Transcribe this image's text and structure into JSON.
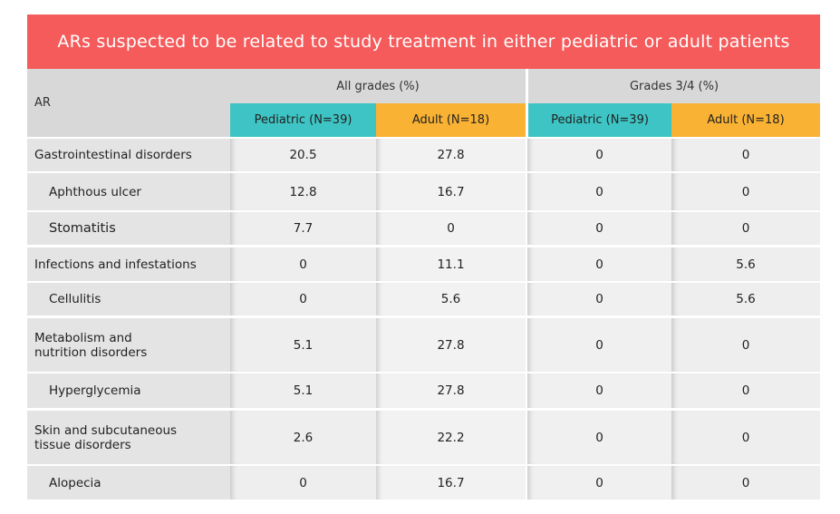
{
  "title": "ARs suspected to be related to study treatment in either pediatric or adult patients",
  "header": {
    "ar_label": "AR",
    "group_all": "All grades (%)",
    "group_34": "Grades 3/4 (%)",
    "pediatric": "Pediatric (N=39)",
    "adult": "Adult (N=18)"
  },
  "colors": {
    "title_bg": "#f55b5b",
    "pediatric": "#3ec4c4",
    "adult": "#f9b233",
    "header_gray": "#d8d8d8"
  },
  "rows": [
    {
      "label": "Gastrointestinal disorders",
      "all_ped": "20.5",
      "all_adult": "27.8",
      "g34_ped": "0",
      "g34_adult": "0"
    },
    {
      "label": "Aphthous ulcer",
      "all_ped": "12.8",
      "all_adult": "16.7",
      "g34_ped": "0",
      "g34_adult": "0"
    },
    {
      "label": "Stomatitis",
      "all_ped": "7.7",
      "all_adult": "0",
      "g34_ped": "0",
      "g34_adult": "0"
    },
    {
      "label": "Infections and infestations",
      "all_ped": "0",
      "all_adult": "11.1",
      "g34_ped": "0",
      "g34_adult": "5.6"
    },
    {
      "label": "Cellulitis",
      "all_ped": "0",
      "all_adult": "5.6",
      "g34_ped": "0",
      "g34_adult": "5.6"
    },
    {
      "label_line1": "Metabolism and",
      "label_line2": "nutrition disorders",
      "all_ped": "5.1",
      "all_adult": "27.8",
      "g34_ped": "0",
      "g34_adult": "0"
    },
    {
      "label": "Hyperglycemia",
      "all_ped": "5.1",
      "all_adult": "27.8",
      "g34_ped": "0",
      "g34_adult": "0"
    },
    {
      "label_line1": "Skin and subcutaneous",
      "label_line2": "tissue disorders",
      "all_ped": "2.6",
      "all_adult": "22.2",
      "g34_ped": "0",
      "g34_adult": "0"
    },
    {
      "label": "Alopecia",
      "all_ped": "0",
      "all_adult": "16.7",
      "g34_ped": "0",
      "g34_adult": "0"
    }
  ]
}
